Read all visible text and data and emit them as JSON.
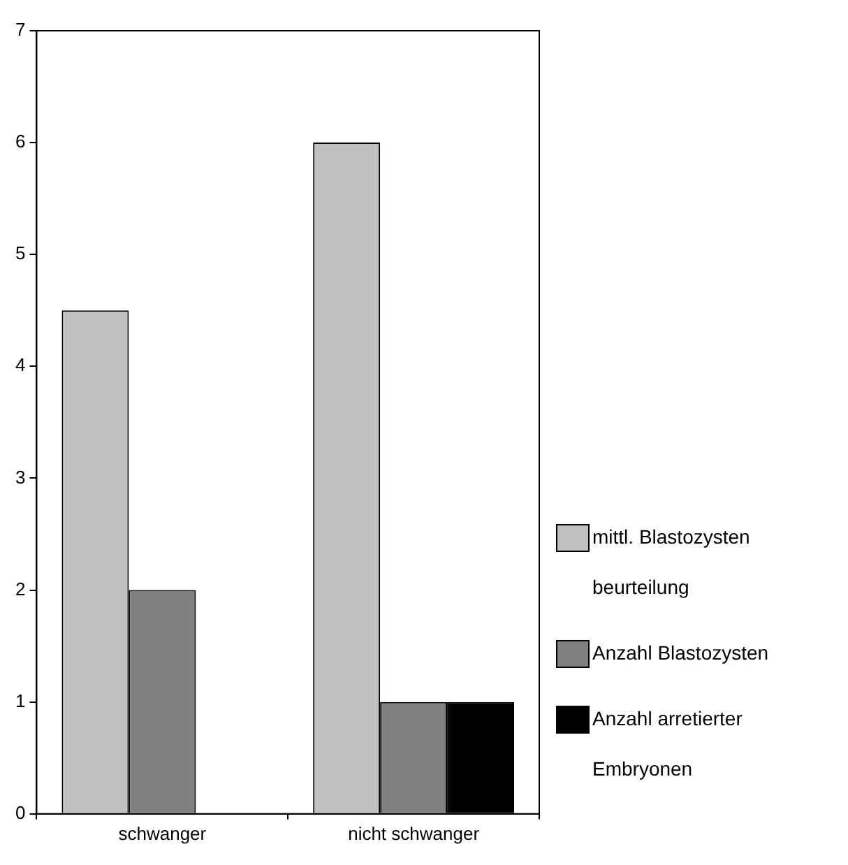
{
  "chart_data": {
    "type": "bar",
    "categories": [
      "schwanger",
      "nicht schwanger"
    ],
    "series": [
      {
        "name": "mittl. Blastozysten beurteilung",
        "color": "#c0c0c0",
        "values": [
          4.5,
          6
        ]
      },
      {
        "name": "Anzahl Blastozysten",
        "color": "#808080",
        "values": [
          2,
          1
        ]
      },
      {
        "name": "Anzahl arretierter Embryonen",
        "color": "#000000",
        "values": [
          null,
          1
        ]
      }
    ],
    "ylim": [
      0,
      7
    ],
    "yticks": [
      0,
      1,
      2,
      3,
      4,
      5,
      6,
      7
    ],
    "grid": false,
    "legend": "right"
  }
}
